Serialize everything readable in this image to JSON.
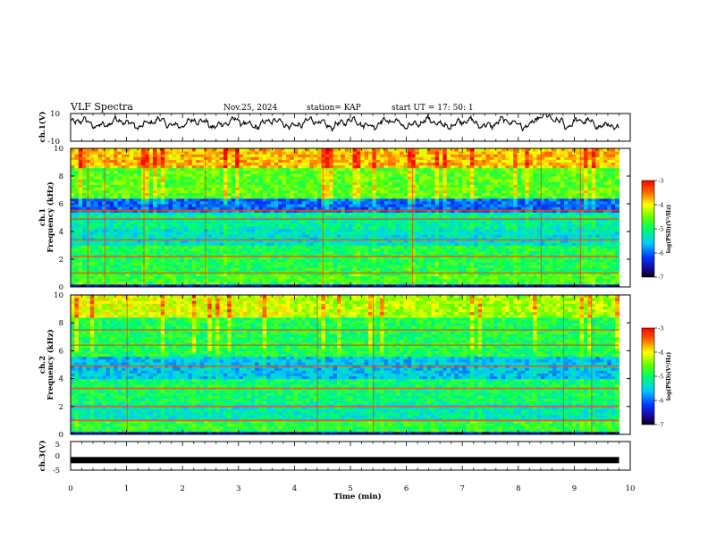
{
  "header": {
    "title": "VLF Spectra",
    "date": "Nov.25, 2024",
    "station": "station= KAP",
    "start": "start  UT =   17: 50: 1"
  },
  "chart_data": [
    {
      "type": "line",
      "name": "ch1-waveform",
      "ylabel": "ch.1(V)",
      "ylim": [
        -10,
        10
      ],
      "yticks": [
        "10",
        "-10"
      ],
      "xlim": [
        0,
        10
      ],
      "data_end_min": 9.8,
      "trace_level_approx": 3
    },
    {
      "type": "heatmap",
      "name": "ch1-spectrogram",
      "ylabel": "Frequency (kHz)",
      "channel_label": "ch.1",
      "ylim": [
        0,
        10
      ],
      "yticks": [
        "0",
        "2",
        "4",
        "6",
        "8",
        "10"
      ],
      "xlim": [
        0,
        10
      ],
      "data_end_min": 9.8,
      "colorbar": {
        "min": -7,
        "max": -3,
        "ticks": [
          "-3",
          "-4",
          "-5",
          "-6",
          "-7"
        ],
        "label": "log(PSD)(V²/Hz)"
      }
    },
    {
      "type": "heatmap",
      "name": "ch2-spectrogram",
      "ylabel": "Frequency (kHz)",
      "channel_label": "ch.2",
      "ylim": [
        0,
        10
      ],
      "yticks": [
        "0",
        "2",
        "4",
        "6",
        "8",
        "10"
      ],
      "xlim": [
        0,
        10
      ],
      "data_end_min": 9.8,
      "colorbar": {
        "min": -7,
        "max": -3,
        "ticks": [
          "-3",
          "-4",
          "-5",
          "-6",
          "-7"
        ],
        "label": "log(PSD)(V²/Hz)"
      }
    },
    {
      "type": "line",
      "name": "ch3-signal",
      "ylabel": "ch.3(V)",
      "ylim": [
        -5,
        5
      ],
      "yticks": [
        "5",
        "0",
        "-5"
      ],
      "xlim": [
        0,
        10
      ],
      "data_end_min": 9.8,
      "constant_value_approx": -1.5,
      "xlabel": "Time  (min)",
      "xticks": [
        "0",
        "1",
        "2",
        "3",
        "4",
        "5",
        "6",
        "7",
        "8",
        "9",
        "10"
      ]
    }
  ]
}
